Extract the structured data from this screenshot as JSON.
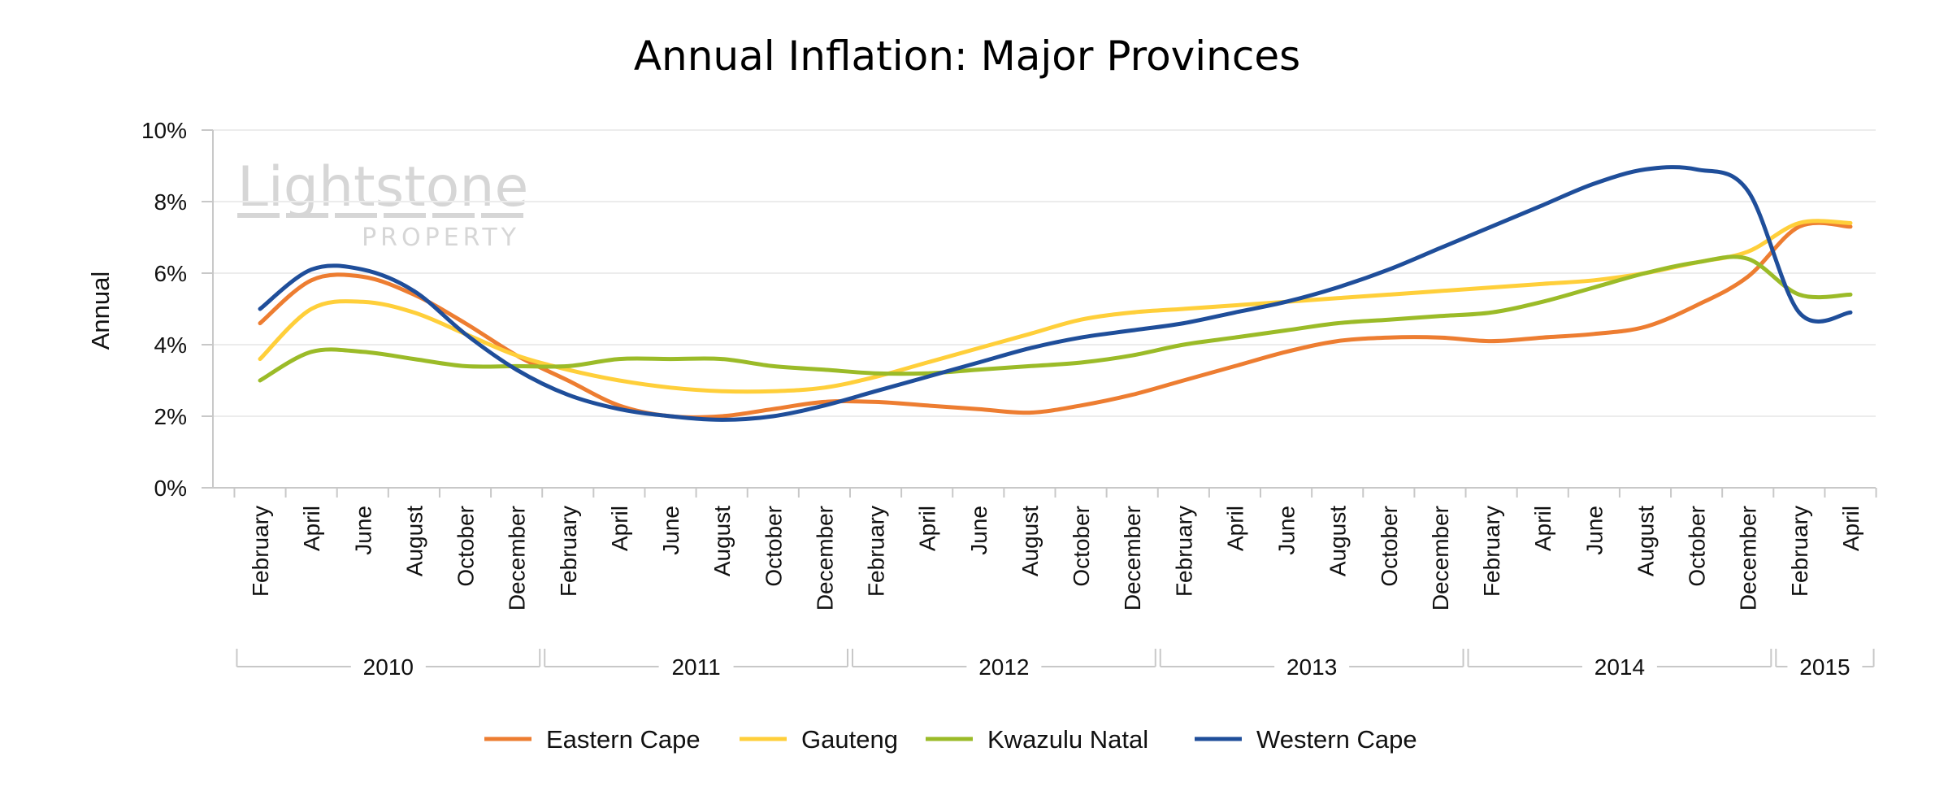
{
  "chart_data": {
    "type": "line",
    "title": "Annual Inflation: Major Provinces",
    "ylabel": "Annual",
    "xlabel": "",
    "ylim": [
      0,
      10
    ],
    "y_ticks": [
      "0%",
      "2%",
      "4%",
      "6%",
      "8%",
      "10%"
    ],
    "y_tick_values": [
      0,
      2,
      4,
      6,
      8,
      10
    ],
    "categories": [
      "February",
      "April",
      "June",
      "August",
      "October",
      "December",
      "February",
      "April",
      "June",
      "August",
      "October",
      "December",
      "February",
      "April",
      "June",
      "August",
      "October",
      "December",
      "February",
      "April",
      "June",
      "August",
      "October",
      "December",
      "February",
      "April",
      "June",
      "August",
      "October",
      "December",
      "February",
      "April"
    ],
    "year_groups": [
      {
        "label": "2010",
        "count": 6
      },
      {
        "label": "2011",
        "count": 6
      },
      {
        "label": "2012",
        "count": 6
      },
      {
        "label": "2013",
        "count": 6
      },
      {
        "label": "2014",
        "count": 6
      },
      {
        "label": "2015",
        "count": 2
      }
    ],
    "grid": true,
    "legend_position": "bottom",
    "series": [
      {
        "name": "Eastern Cape",
        "color": "#ED7D31",
        "values": [
          4.6,
          5.8,
          5.9,
          5.4,
          4.6,
          3.7,
          3.0,
          2.3,
          2.0,
          2.0,
          2.2,
          2.4,
          2.4,
          2.3,
          2.2,
          2.1,
          2.3,
          2.6,
          3.0,
          3.4,
          3.8,
          4.1,
          4.2,
          4.2,
          4.1,
          4.2,
          4.3,
          4.5,
          5.1,
          5.9,
          7.3,
          7.3
        ]
      },
      {
        "name": "Gauteng",
        "color": "#FFCF3A",
        "values": [
          3.6,
          5.0,
          5.2,
          4.9,
          4.3,
          3.7,
          3.3,
          3.0,
          2.8,
          2.7,
          2.7,
          2.8,
          3.1,
          3.5,
          3.9,
          4.3,
          4.7,
          4.9,
          5.0,
          5.1,
          5.2,
          5.3,
          5.4,
          5.5,
          5.6,
          5.7,
          5.8,
          6.0,
          6.3,
          6.6,
          7.4,
          7.4
        ]
      },
      {
        "name": "Kwazulu Natal",
        "color": "#9BBB28",
        "values": [
          3.0,
          3.8,
          3.8,
          3.6,
          3.4,
          3.4,
          3.4,
          3.6,
          3.6,
          3.6,
          3.4,
          3.3,
          3.2,
          3.2,
          3.3,
          3.4,
          3.5,
          3.7,
          4.0,
          4.2,
          4.4,
          4.6,
          4.7,
          4.8,
          4.9,
          5.2,
          5.6,
          6.0,
          6.3,
          6.4,
          5.4,
          5.4
        ]
      },
      {
        "name": "Western Cape",
        "color": "#1F4E9A",
        "values": [
          5.0,
          6.1,
          6.1,
          5.5,
          4.3,
          3.3,
          2.6,
          2.2,
          2.0,
          1.9,
          2.0,
          2.3,
          2.7,
          3.1,
          3.5,
          3.9,
          4.2,
          4.4,
          4.6,
          4.9,
          5.2,
          5.6,
          6.1,
          6.7,
          7.3,
          7.9,
          8.5,
          8.9,
          8.9,
          8.3,
          4.9,
          4.9
        ]
      }
    ]
  },
  "watermark": {
    "brand": "Lightstone",
    "sub": "PROPERTY"
  }
}
